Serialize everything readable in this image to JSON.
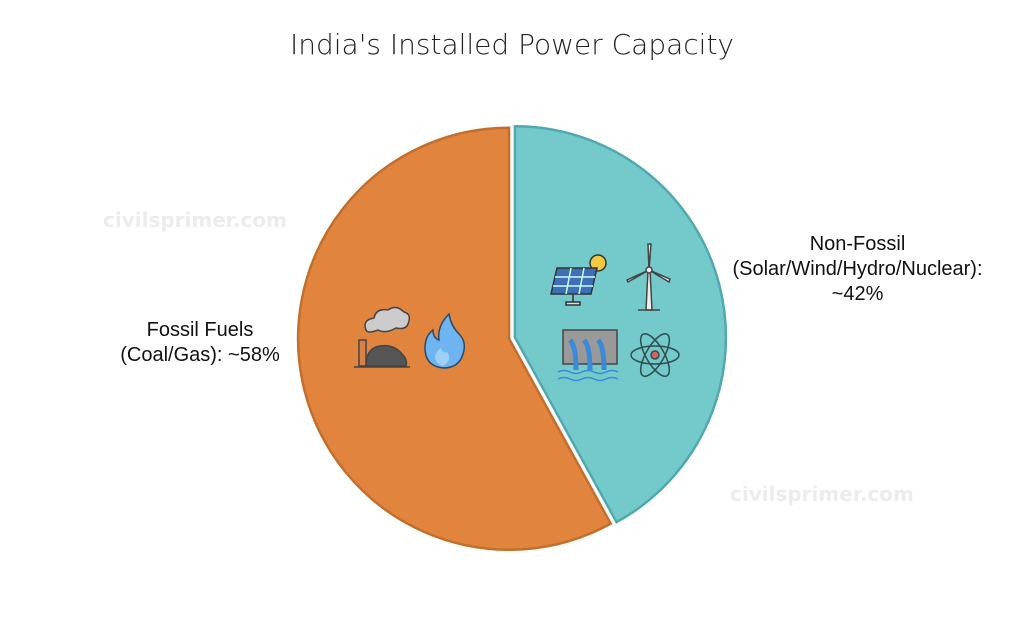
{
  "chart_data": {
    "type": "pie",
    "title": "India's Installed Power Capacity",
    "slices": [
      {
        "label_line1": "Fossil Fuels",
        "label_line2": "(Coal/Gas): ~58%",
        "label_line3": "",
        "value": 58,
        "color": "#E0843E",
        "stroke": "#C46E2C",
        "icons": [
          "factory-smoke-coal-icon",
          "gas-flame-icon"
        ]
      },
      {
        "label_line1": "Non-Fossil",
        "label_line2": "(Solar/Wind/Hydro/Nuclear):",
        "label_line3": "~42%",
        "value": 42,
        "color": "#74C9CB",
        "stroke": "#4FA9AE",
        "icons": [
          "solar-panel-icon",
          "wind-turbine-icon",
          "hydro-dam-icon",
          "atom-nuclear-icon"
        ]
      }
    ],
    "start": "top",
    "direction": "non-fossil clockwise from top",
    "legend": "none"
  },
  "watermark": "civilsprimer.com"
}
